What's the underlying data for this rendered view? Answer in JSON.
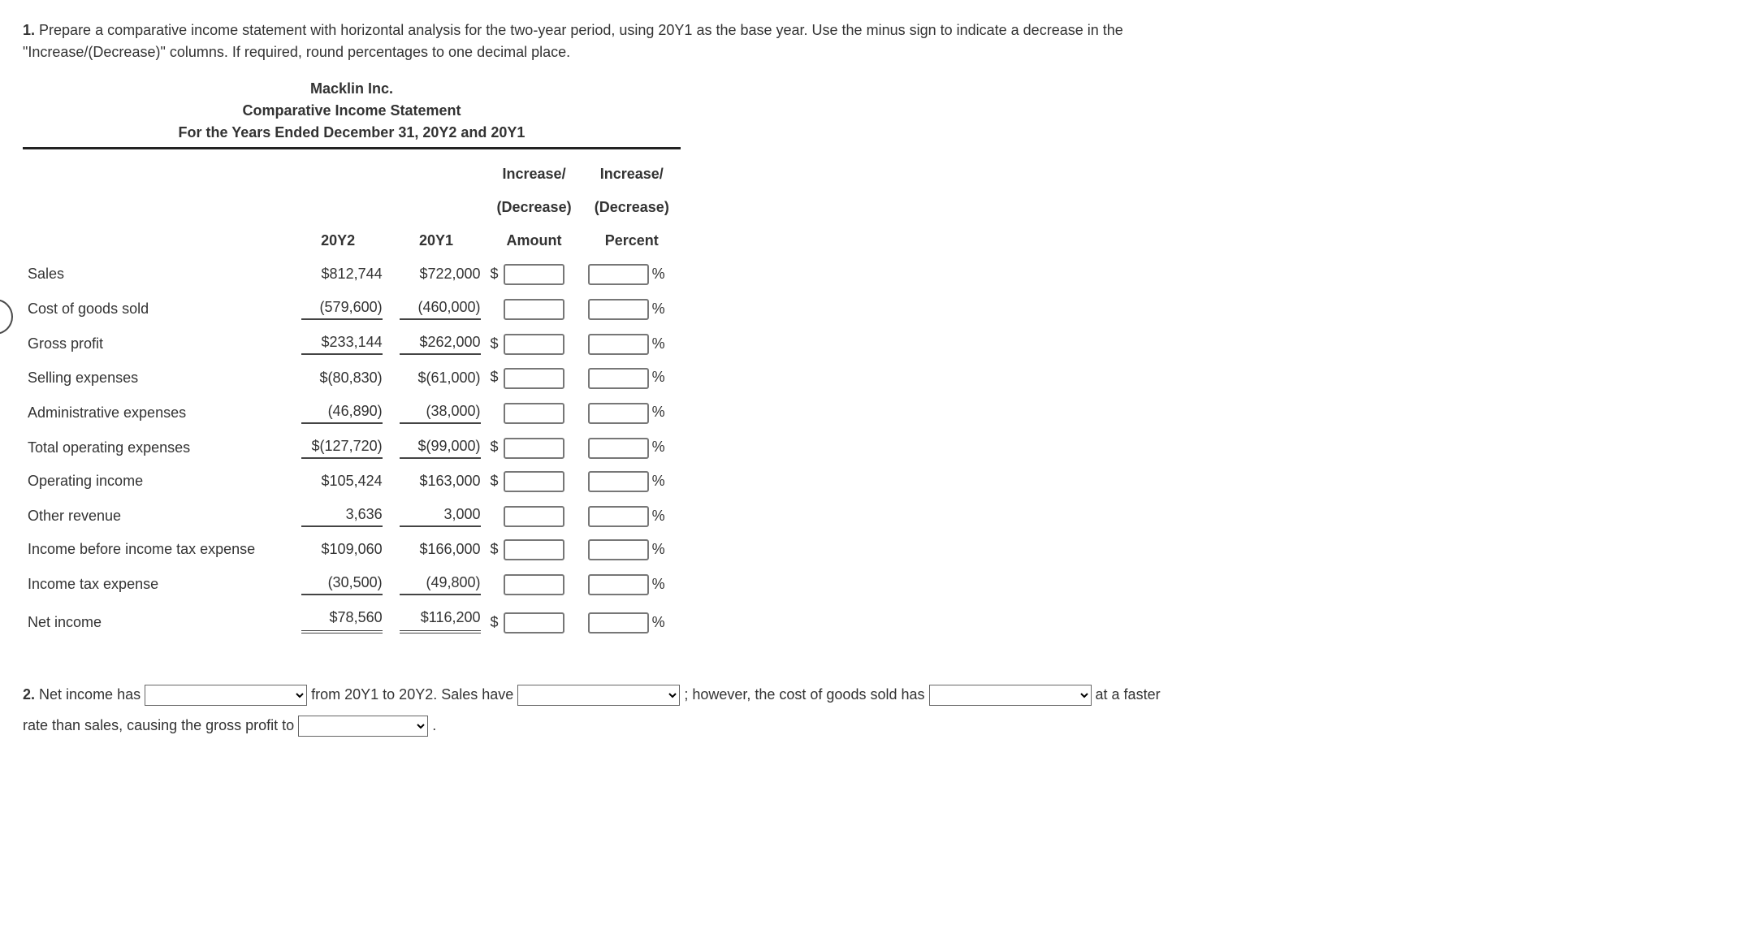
{
  "prompt1_num": "1.",
  "prompt1_text_a": "Prepare a comparative income statement with horizontal analysis for the two-year period, using 20Y1 as the base year. Use the minus sign to indicate a decrease in the",
  "prompt1_text_b": "\"Increase/(Decrease)\" columns. If required, round percentages to one decimal place.",
  "title_company": "Macklin Inc.",
  "title_stmt": "Comparative Income Statement",
  "title_period": "For the Years Ended December 31, 20Y2 and 20Y1",
  "headers": {
    "y2": "20Y2",
    "y1": "20Y1",
    "amt1": "Increase/",
    "amt2": "(Decrease)",
    "amt3": "Amount",
    "pct1": "Increase/",
    "pct2": "(Decrease)",
    "pct3": "Percent"
  },
  "dollar": "$",
  "percent": "%",
  "rows": {
    "sales": {
      "label": "Sales",
      "y2": "$812,744",
      "y1": "$722,000"
    },
    "cogs": {
      "label": "Cost of goods sold",
      "y2": "(579,600)",
      "y1": "(460,000)"
    },
    "gp": {
      "label": "Gross profit",
      "y2": "$233,144",
      "y1": "$262,000"
    },
    "sell": {
      "label": "Selling expenses",
      "y2": "$(80,830)",
      "y1": "$(61,000)"
    },
    "admin": {
      "label": "Administrative expenses",
      "y2": "(46,890)",
      "y1": "(38,000)"
    },
    "totop": {
      "label": "Total operating expenses",
      "y2": "$(127,720)",
      "y1": "$(99,000)"
    },
    "opinc": {
      "label": "Operating income",
      "y2": "$105,424",
      "y1": "$163,000"
    },
    "othrev": {
      "label": "Other revenue",
      "y2": "3,636",
      "y1": "3,000"
    },
    "ibt": {
      "label": "Income before income tax expense",
      "y2": "$109,060",
      "y1": "$166,000"
    },
    "tax": {
      "label": "Income tax expense",
      "y2": "(30,500)",
      "y1": "(49,800)"
    },
    "net": {
      "label": "Net income",
      "y2": "$78,560",
      "y1": "$116,200"
    }
  },
  "prompt2_num": "2.",
  "q2": {
    "a": "Net income has",
    "b": "from 20Y1 to 20Y2. Sales have",
    "c": "; however, the cost of goods sold has",
    "d": "at a faster",
    "e": "rate than sales, causing the gross profit to",
    "f": "."
  }
}
